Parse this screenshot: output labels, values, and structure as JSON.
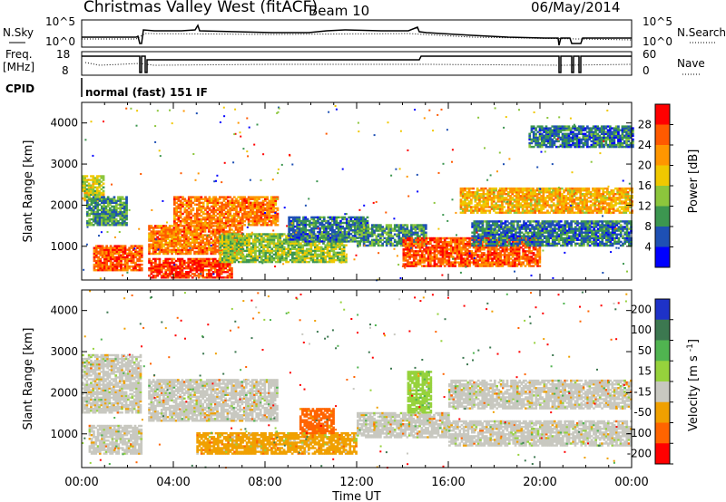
{
  "header": {
    "title": "Christmas Valley West (fitACF)",
    "beam": "Beam 10",
    "date": "06/May/2014",
    "cpid_label": "CPID",
    "cpid_value": "normal (fast) 151 IF"
  },
  "panels": {
    "nsky": {
      "label": "N.Sky",
      "ytick_top": "10^5",
      "ytick_bottom": "10^0",
      "right_label": "N.Search",
      "right_ytick_top": "10^5",
      "right_ytick_bottom": "10^0"
    },
    "freq": {
      "label1": "Freq.",
      "label2": "[MHz]",
      "ytick_top": "18",
      "ytick_bottom": "8",
      "right_label": "Nave",
      "right_ytick_top": "60",
      "right_ytick_bottom": "0"
    }
  },
  "chart_data": [
    {
      "type": "heatmap",
      "name": "power",
      "ylabel": "Slant Range [km]",
      "xlabel": "Time UT",
      "xlim_hours": [
        0,
        24
      ],
      "ylim_km": [
        180,
        4500
      ],
      "yticks": [
        "1000",
        "2000",
        "3000",
        "4000"
      ],
      "xticks": [
        "00:00",
        "04:00",
        "08:00",
        "12:00",
        "16:00",
        "20:00",
        "00:00"
      ],
      "colorbar": {
        "label": "Power [dB]",
        "ticks": [
          "28",
          "24",
          "20",
          "16",
          "12",
          "8",
          "4"
        ],
        "colors": [
          "#ff0000",
          "#ff5a00",
          "#ff9600",
          "#f0c800",
          "#8cc63c",
          "#3c9650",
          "#1e50b4",
          "#0000ff"
        ]
      },
      "regions": [
        {
          "t0": 0.0,
          "t1": 0.9,
          "r0": 2100,
          "r1": 2700,
          "level": 16
        },
        {
          "t0": 0.2,
          "t1": 2.0,
          "r0": 1500,
          "r1": 2200,
          "level": 10
        },
        {
          "t0": 0.5,
          "t1": 2.6,
          "r0": 400,
          "r1": 1000,
          "level": 26
        },
        {
          "t0": 2.9,
          "t1": 6.5,
          "r0": 220,
          "r1": 700,
          "level": 28
        },
        {
          "t0": 2.9,
          "t1": 7.0,
          "r0": 800,
          "r1": 1500,
          "level": 24
        },
        {
          "t0": 4.0,
          "t1": 8.5,
          "r0": 1500,
          "r1": 2200,
          "level": 24
        },
        {
          "t0": 6.0,
          "t1": 11.5,
          "r0": 600,
          "r1": 1300,
          "level": 14
        },
        {
          "t0": 9.0,
          "t1": 12.5,
          "r0": 1100,
          "r1": 1700,
          "level": 8
        },
        {
          "t0": 12.0,
          "t1": 15.0,
          "r0": 1000,
          "r1": 1500,
          "level": 10
        },
        {
          "t0": 14.0,
          "t1": 20.0,
          "r0": 500,
          "r1": 1200,
          "level": 26
        },
        {
          "t0": 17.0,
          "t1": 24.0,
          "r0": 1000,
          "r1": 1600,
          "level": 8
        },
        {
          "t0": 16.5,
          "t1": 24.0,
          "r0": 1800,
          "r1": 2400,
          "level": 20
        },
        {
          "t0": 19.5,
          "t1": 24.0,
          "r0": 3400,
          "r1": 3900,
          "level": 8
        }
      ]
    },
    {
      "type": "heatmap",
      "name": "velocity",
      "ylabel": "Slant Range [km]",
      "xlabel": "Time UT",
      "xlim_hours": [
        0,
        24
      ],
      "ylim_km": [
        180,
        4500
      ],
      "yticks": [
        "1000",
        "2000",
        "3000",
        "4000"
      ],
      "xticks": [
        "00:00",
        "04:00",
        "08:00",
        "12:00",
        "16:00",
        "20:00",
        "00:00"
      ],
      "colorbar": {
        "label": "Velocity [m s^-1]",
        "ticks": [
          "200",
          "100",
          "50",
          "15",
          "-15",
          "-50",
          "-100",
          "-200"
        ],
        "colors": [
          "#1e32c8",
          "#3c7850",
          "#50b450",
          "#96d23c",
          "#c8c8c0",
          "#f0a000",
          "#ff6400",
          "#ff0000"
        ]
      },
      "regions": [
        {
          "t0": 0.0,
          "t1": 2.6,
          "r0": 1500,
          "r1": 2900,
          "level": 0
        },
        {
          "t0": 0.3,
          "t1": 2.6,
          "r0": 500,
          "r1": 1200,
          "level": 0
        },
        {
          "t0": 2.9,
          "t1": 8.5,
          "r0": 1300,
          "r1": 2300,
          "level": 0
        },
        {
          "t0": 5.0,
          "t1": 12.0,
          "r0": 500,
          "r1": 1000,
          "level": -30
        },
        {
          "t0": 9.5,
          "t1": 11.0,
          "r0": 1000,
          "r1": 1600,
          "level": -60
        },
        {
          "t0": 12.0,
          "t1": 16.0,
          "r0": 900,
          "r1": 1500,
          "level": 0
        },
        {
          "t0": 14.2,
          "t1": 15.2,
          "r0": 1500,
          "r1": 2500,
          "level": 40
        },
        {
          "t0": 16.0,
          "t1": 24.0,
          "r0": 1600,
          "r1": 2300,
          "level": 0
        },
        {
          "t0": 16.0,
          "t1": 24.0,
          "r0": 700,
          "r1": 1300,
          "level": 0
        }
      ]
    }
  ]
}
